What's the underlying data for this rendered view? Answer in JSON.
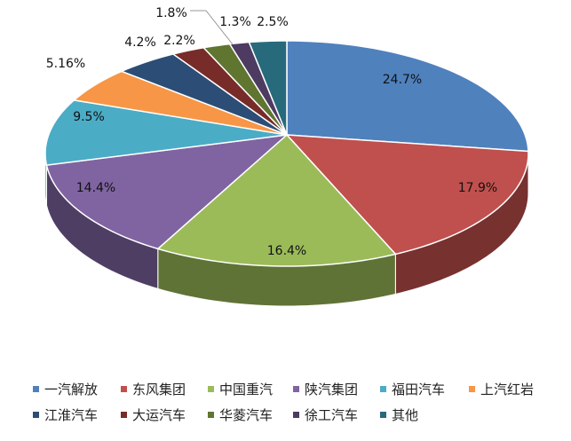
{
  "chart_data": {
    "type": "pie",
    "style": "3d",
    "categories": [
      "一汽解放",
      "东风集团",
      "中国重汽",
      "陕汽集团",
      "福田汽车",
      "上汽红岩",
      "江淮汽车",
      "大运汽车",
      "华菱汽车",
      "徐工汽车",
      "其他"
    ],
    "values": [
      24.7,
      17.9,
      16.4,
      14.4,
      9.5,
      5.16,
      4.2,
      2.2,
      1.8,
      1.3,
      2.5
    ],
    "labels": [
      "24.7%",
      "17.9%",
      "16.4%",
      "14.4%",
      "9.5%",
      "5.16%",
      "4.2%",
      "2.2%",
      "1.8%",
      "1.3%",
      "2.5%"
    ],
    "colors": [
      "#4F81BD",
      "#C0504D",
      "#9BBB59",
      "#8064A2",
      "#4BACC6",
      "#F79646",
      "#2C4D75",
      "#772C2A",
      "#5F7530",
      "#4D3B62",
      "#276A7C"
    ],
    "legend_position": "bottom"
  }
}
